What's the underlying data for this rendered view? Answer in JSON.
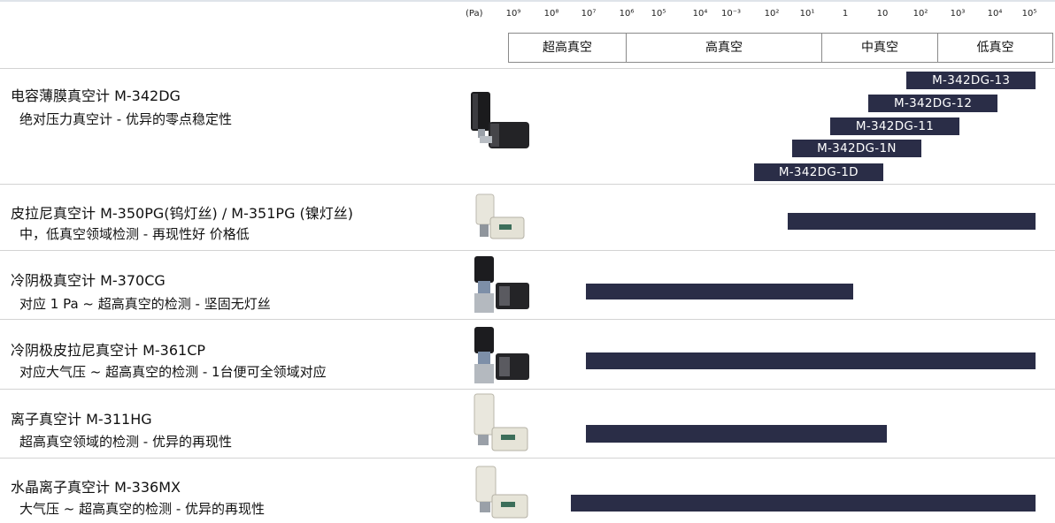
{
  "header": {
    "unit": "(Pa)",
    "ticks": [
      "10⁹",
      "10⁸",
      "10⁷",
      "10⁶",
      "10⁵",
      "10⁴",
      "10⁻³",
      "10²",
      "10¹",
      "1",
      "10",
      "10²",
      "10³",
      "10⁴",
      "10⁵"
    ],
    "ranges": [
      {
        "label": "超高真空"
      },
      {
        "label": "高真空"
      },
      {
        "label": "中真空"
      },
      {
        "label": "低真空"
      }
    ]
  },
  "chart_data": {
    "type": "bar",
    "orientation": "horizontal",
    "x_ticks": [
      "10⁹",
      "10⁸",
      "10⁷",
      "10⁶",
      "10⁵",
      "10⁴",
      "10⁻³",
      "10²",
      "10¹",
      "1",
      "10",
      "10²",
      "10³",
      "10⁴",
      "10⁵"
    ],
    "x_scale": "log",
    "x_unit": "Pa",
    "categories": [
      "电容薄膜真空计 M-342DG",
      "皮拉尼真空计 M-350PG(钨灯丝) / M-351PG (镍灯丝)",
      "冷阴极真空计 M-370CG",
      "冷阴极皮拉尼真空计 M-361CP",
      "离子真空计 M-311HG",
      "水晶离子真空计 M-336MX"
    ],
    "models": [
      {
        "name": "电容薄膜真空计 M-342DG",
        "description": "绝对压力真空计 - 优异的零点稳定性",
        "photo": "capacitance-gauge-photo",
        "sub_ranges": [
          {
            "label": "M-342DG-13",
            "start_exp": 1.6,
            "end_exp": 5.0
          },
          {
            "label": "M-342DG-12",
            "start_exp": 0.6,
            "end_exp": 4.0
          },
          {
            "label": "M-342DG-11",
            "start_exp": -0.4,
            "end_exp": 3.0
          },
          {
            "label": "M-342DG-1N",
            "start_exp": -1.4,
            "end_exp": 2.0
          },
          {
            "label": "M-342DG-1D",
            "start_exp": -2.4,
            "end_exp": 1.0
          }
        ]
      },
      {
        "name": "皮拉尼真空计 M-350PG(钨灯丝) / M-351PG (镍灯丝)",
        "description": "中，低真空领域检测 - 再现性好 价格低",
        "photo": "pirani-gauge-photo",
        "start_exp": -1.5,
        "end_exp": 5.0
      },
      {
        "name": "冷阴极真空计 M-370CG",
        "description": "对应 1 Pa ~ 超高真空的检测 - 坚固无灯丝",
        "photo": "cold-cathode-gauge-photo",
        "start_exp": -6.8,
        "end_exp": 0.2
      },
      {
        "name": "冷阴极皮拉尼真空计 M-361CP",
        "description": "对应大气压 ~ 超高真空的检测 - 1台便可全领域对应",
        "photo": "cold-cathode-pirani-gauge-photo",
        "start_exp": -6.8,
        "end_exp": 5.0
      },
      {
        "name": "离子真空计 M-311HG",
        "description": "超高真空领域的检测 - 优异的再现性",
        "photo": "ion-gauge-photo",
        "start_exp": -6.8,
        "end_exp": 1.1
      },
      {
        "name": "水晶离子真空计 M-336MX",
        "description": "大气压 ~ 超高真空的检测 - 优异的再现性",
        "photo": "crystal-ion-gauge-photo",
        "start_exp": -7.2,
        "end_exp": 5.0
      }
    ],
    "colors": {
      "bar": "#2a2d47",
      "bar_text": "#ffffff"
    }
  }
}
